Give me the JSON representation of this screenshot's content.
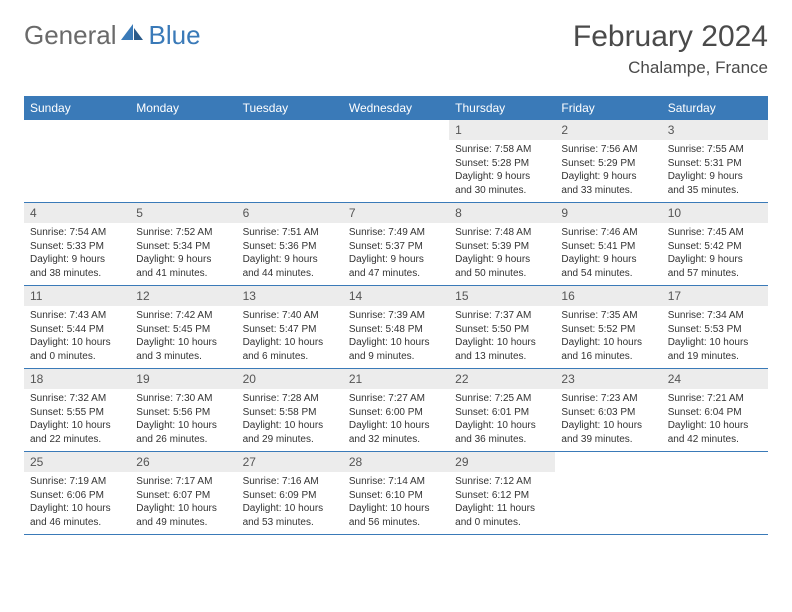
{
  "logo": {
    "general": "General",
    "blue": "Blue"
  },
  "title": "February 2024",
  "location": "Chalampe, France",
  "colors": {
    "header_bg": "#3a7ab8",
    "daynum_bg": "#ececec",
    "text": "#333333",
    "logo_gray": "#6a6a6a"
  },
  "dayNames": [
    "Sunday",
    "Monday",
    "Tuesday",
    "Wednesday",
    "Thursday",
    "Friday",
    "Saturday"
  ],
  "weeks": [
    [
      null,
      null,
      null,
      null,
      {
        "num": "1",
        "sunrise": "Sunrise: 7:58 AM",
        "sunset": "Sunset: 5:28 PM",
        "daylight1": "Daylight: 9 hours",
        "daylight2": "and 30 minutes."
      },
      {
        "num": "2",
        "sunrise": "Sunrise: 7:56 AM",
        "sunset": "Sunset: 5:29 PM",
        "daylight1": "Daylight: 9 hours",
        "daylight2": "and 33 minutes."
      },
      {
        "num": "3",
        "sunrise": "Sunrise: 7:55 AM",
        "sunset": "Sunset: 5:31 PM",
        "daylight1": "Daylight: 9 hours",
        "daylight2": "and 35 minutes."
      }
    ],
    [
      {
        "num": "4",
        "sunrise": "Sunrise: 7:54 AM",
        "sunset": "Sunset: 5:33 PM",
        "daylight1": "Daylight: 9 hours",
        "daylight2": "and 38 minutes."
      },
      {
        "num": "5",
        "sunrise": "Sunrise: 7:52 AM",
        "sunset": "Sunset: 5:34 PM",
        "daylight1": "Daylight: 9 hours",
        "daylight2": "and 41 minutes."
      },
      {
        "num": "6",
        "sunrise": "Sunrise: 7:51 AM",
        "sunset": "Sunset: 5:36 PM",
        "daylight1": "Daylight: 9 hours",
        "daylight2": "and 44 minutes."
      },
      {
        "num": "7",
        "sunrise": "Sunrise: 7:49 AM",
        "sunset": "Sunset: 5:37 PM",
        "daylight1": "Daylight: 9 hours",
        "daylight2": "and 47 minutes."
      },
      {
        "num": "8",
        "sunrise": "Sunrise: 7:48 AM",
        "sunset": "Sunset: 5:39 PM",
        "daylight1": "Daylight: 9 hours",
        "daylight2": "and 50 minutes."
      },
      {
        "num": "9",
        "sunrise": "Sunrise: 7:46 AM",
        "sunset": "Sunset: 5:41 PM",
        "daylight1": "Daylight: 9 hours",
        "daylight2": "and 54 minutes."
      },
      {
        "num": "10",
        "sunrise": "Sunrise: 7:45 AM",
        "sunset": "Sunset: 5:42 PM",
        "daylight1": "Daylight: 9 hours",
        "daylight2": "and 57 minutes."
      }
    ],
    [
      {
        "num": "11",
        "sunrise": "Sunrise: 7:43 AM",
        "sunset": "Sunset: 5:44 PM",
        "daylight1": "Daylight: 10 hours",
        "daylight2": "and 0 minutes."
      },
      {
        "num": "12",
        "sunrise": "Sunrise: 7:42 AM",
        "sunset": "Sunset: 5:45 PM",
        "daylight1": "Daylight: 10 hours",
        "daylight2": "and 3 minutes."
      },
      {
        "num": "13",
        "sunrise": "Sunrise: 7:40 AM",
        "sunset": "Sunset: 5:47 PM",
        "daylight1": "Daylight: 10 hours",
        "daylight2": "and 6 minutes."
      },
      {
        "num": "14",
        "sunrise": "Sunrise: 7:39 AM",
        "sunset": "Sunset: 5:48 PM",
        "daylight1": "Daylight: 10 hours",
        "daylight2": "and 9 minutes."
      },
      {
        "num": "15",
        "sunrise": "Sunrise: 7:37 AM",
        "sunset": "Sunset: 5:50 PM",
        "daylight1": "Daylight: 10 hours",
        "daylight2": "and 13 minutes."
      },
      {
        "num": "16",
        "sunrise": "Sunrise: 7:35 AM",
        "sunset": "Sunset: 5:52 PM",
        "daylight1": "Daylight: 10 hours",
        "daylight2": "and 16 minutes."
      },
      {
        "num": "17",
        "sunrise": "Sunrise: 7:34 AM",
        "sunset": "Sunset: 5:53 PM",
        "daylight1": "Daylight: 10 hours",
        "daylight2": "and 19 minutes."
      }
    ],
    [
      {
        "num": "18",
        "sunrise": "Sunrise: 7:32 AM",
        "sunset": "Sunset: 5:55 PM",
        "daylight1": "Daylight: 10 hours",
        "daylight2": "and 22 minutes."
      },
      {
        "num": "19",
        "sunrise": "Sunrise: 7:30 AM",
        "sunset": "Sunset: 5:56 PM",
        "daylight1": "Daylight: 10 hours",
        "daylight2": "and 26 minutes."
      },
      {
        "num": "20",
        "sunrise": "Sunrise: 7:28 AM",
        "sunset": "Sunset: 5:58 PM",
        "daylight1": "Daylight: 10 hours",
        "daylight2": "and 29 minutes."
      },
      {
        "num": "21",
        "sunrise": "Sunrise: 7:27 AM",
        "sunset": "Sunset: 6:00 PM",
        "daylight1": "Daylight: 10 hours",
        "daylight2": "and 32 minutes."
      },
      {
        "num": "22",
        "sunrise": "Sunrise: 7:25 AM",
        "sunset": "Sunset: 6:01 PM",
        "daylight1": "Daylight: 10 hours",
        "daylight2": "and 36 minutes."
      },
      {
        "num": "23",
        "sunrise": "Sunrise: 7:23 AM",
        "sunset": "Sunset: 6:03 PM",
        "daylight1": "Daylight: 10 hours",
        "daylight2": "and 39 minutes."
      },
      {
        "num": "24",
        "sunrise": "Sunrise: 7:21 AM",
        "sunset": "Sunset: 6:04 PM",
        "daylight1": "Daylight: 10 hours",
        "daylight2": "and 42 minutes."
      }
    ],
    [
      {
        "num": "25",
        "sunrise": "Sunrise: 7:19 AM",
        "sunset": "Sunset: 6:06 PM",
        "daylight1": "Daylight: 10 hours",
        "daylight2": "and 46 minutes."
      },
      {
        "num": "26",
        "sunrise": "Sunrise: 7:17 AM",
        "sunset": "Sunset: 6:07 PM",
        "daylight1": "Daylight: 10 hours",
        "daylight2": "and 49 minutes."
      },
      {
        "num": "27",
        "sunrise": "Sunrise: 7:16 AM",
        "sunset": "Sunset: 6:09 PM",
        "daylight1": "Daylight: 10 hours",
        "daylight2": "and 53 minutes."
      },
      {
        "num": "28",
        "sunrise": "Sunrise: 7:14 AM",
        "sunset": "Sunset: 6:10 PM",
        "daylight1": "Daylight: 10 hours",
        "daylight2": "and 56 minutes."
      },
      {
        "num": "29",
        "sunrise": "Sunrise: 7:12 AM",
        "sunset": "Sunset: 6:12 PM",
        "daylight1": "Daylight: 11 hours",
        "daylight2": "and 0 minutes."
      },
      null,
      null
    ]
  ]
}
